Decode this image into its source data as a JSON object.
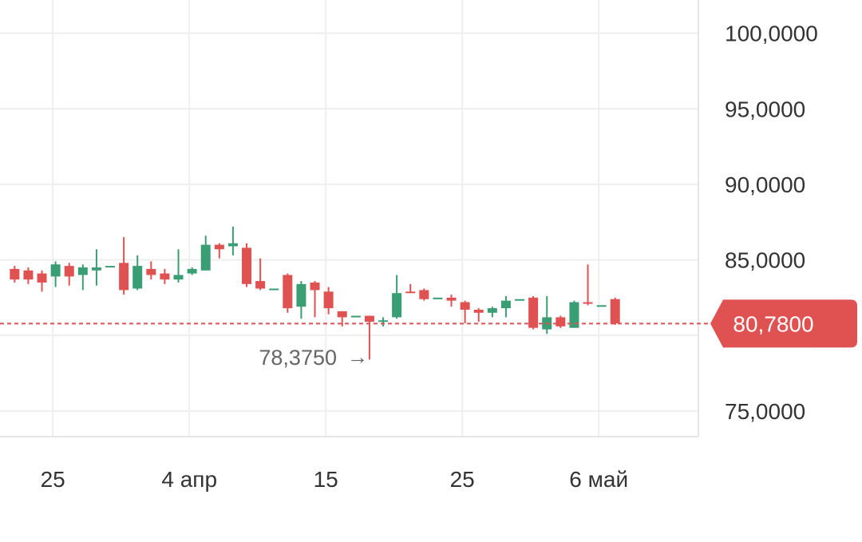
{
  "chart_data": {
    "type": "candlestick",
    "y_axis": {
      "position": "right",
      "range": [
        73.3,
        102.2
      ],
      "ticks": [
        "100,0000",
        "95,0000",
        "90,0000",
        "85,0000",
        "75,0000"
      ],
      "tick_values": [
        100,
        95,
        90,
        85,
        75
      ]
    },
    "x_axis": {
      "ticks": [
        {
          "label": "25",
          "day": -8
        },
        {
          "label": "4 апр",
          "day": 2
        },
        {
          "label": "15",
          "day": 12
        },
        {
          "label": "25",
          "day": 22
        },
        {
          "label": "6 май",
          "day": 32
        }
      ]
    },
    "current_price": {
      "value": 80.78,
      "label": "80,7800",
      "color": "#e05252"
    },
    "min_annotation": {
      "value": 78.375,
      "label": "78,3750",
      "arrow": "→",
      "day": 19.5
    },
    "colors": {
      "up": "#3a9e74",
      "down": "#e05252",
      "grid": "#eeeeee",
      "axis_text": "#333333",
      "annotation_text": "#666666"
    },
    "candles": [
      {
        "d": -10.8,
        "o": 84.4,
        "c": 83.7,
        "h": 84.6,
        "l": 83.5
      },
      {
        "d": -9.8,
        "o": 84.3,
        "c": 83.7,
        "h": 84.5,
        "l": 83.4
      },
      {
        "d": -8.8,
        "o": 84.1,
        "c": 83.5,
        "h": 84.3,
        "l": 82.9
      },
      {
        "d": -7.8,
        "o": 83.9,
        "c": 84.7,
        "h": 84.9,
        "l": 83.2
      },
      {
        "d": -6.8,
        "o": 84.6,
        "c": 83.9,
        "h": 84.8,
        "l": 83.3
      },
      {
        "d": -5.8,
        "o": 84.0,
        "c": 84.5,
        "h": 84.7,
        "l": 83.0
      },
      {
        "d": -4.8,
        "o": 84.3,
        "c": 84.5,
        "h": 85.7,
        "l": 83.3
      },
      {
        "d": -3.8,
        "o": 84.6,
        "c": 84.6,
        "h": 84.6,
        "l": 84.6
      },
      {
        "d": -2.8,
        "o": 84.8,
        "c": 83.0,
        "h": 86.5,
        "l": 82.7
      },
      {
        "d": -1.8,
        "o": 83.1,
        "c": 84.6,
        "h": 85.3,
        "l": 83.0
      },
      {
        "d": -0.8,
        "o": 84.4,
        "c": 84.0,
        "h": 84.9,
        "l": 83.7
      },
      {
        "d": 0.2,
        "o": 84.1,
        "c": 83.7,
        "h": 84.4,
        "l": 83.4
      },
      {
        "d": 1.2,
        "o": 83.7,
        "c": 84.0,
        "h": 85.7,
        "l": 83.5
      },
      {
        "d": 2.2,
        "o": 84.1,
        "c": 84.4,
        "h": 84.5,
        "l": 84.0
      },
      {
        "d": 3.2,
        "o": 84.3,
        "c": 86.0,
        "h": 86.6,
        "l": 84.3
      },
      {
        "d": 4.2,
        "o": 86.0,
        "c": 85.7,
        "h": 86.1,
        "l": 85.1
      },
      {
        "d": 5.2,
        "o": 85.9,
        "c": 86.1,
        "h": 87.2,
        "l": 85.3
      },
      {
        "d": 6.2,
        "o": 85.8,
        "c": 83.4,
        "h": 86.1,
        "l": 83.2
      },
      {
        "d": 7.2,
        "o": 83.6,
        "c": 83.1,
        "h": 85.1,
        "l": 83.0
      },
      {
        "d": 8.2,
        "o": 83.1,
        "c": 83.1,
        "h": 83.1,
        "l": 83.1
      },
      {
        "d": 9.2,
        "o": 84.0,
        "c": 81.8,
        "h": 84.1,
        "l": 81.5
      },
      {
        "d": 10.2,
        "o": 81.9,
        "c": 83.4,
        "h": 83.6,
        "l": 81.1
      },
      {
        "d": 11.2,
        "o": 83.5,
        "c": 83.0,
        "h": 83.6,
        "l": 81.2
      },
      {
        "d": 12.2,
        "o": 82.9,
        "c": 81.8,
        "h": 83.2,
        "l": 81.4
      },
      {
        "d": 13.2,
        "o": 81.6,
        "c": 81.2,
        "h": 81.6,
        "l": 80.6
      },
      {
        "d": 14.2,
        "o": 81.2,
        "c": 81.3,
        "h": 81.3,
        "l": 81.2
      },
      {
        "d": 15.2,
        "o": 81.3,
        "c": 80.9,
        "h": 81.3,
        "l": 78.4
      },
      {
        "d": 16.2,
        "o": 80.9,
        "c": 81.0,
        "h": 81.2,
        "l": 80.6
      },
      {
        "d": 17.2,
        "o": 81.2,
        "c": 82.8,
        "h": 84.0,
        "l": 81.1
      },
      {
        "d": 18.2,
        "o": 82.9,
        "c": 82.8,
        "h": 83.4,
        "l": 82.8
      },
      {
        "d": 19.2,
        "o": 83.0,
        "c": 82.4,
        "h": 83.1,
        "l": 82.3
      },
      {
        "d": 20.2,
        "o": 82.5,
        "c": 82.5,
        "h": 82.5,
        "l": 82.5
      },
      {
        "d": 21.2,
        "o": 82.5,
        "c": 82.3,
        "h": 82.7,
        "l": 81.9
      },
      {
        "d": 22.2,
        "o": 82.2,
        "c": 81.7,
        "h": 82.3,
        "l": 80.8
      },
      {
        "d": 23.2,
        "o": 81.7,
        "c": 81.5,
        "h": 81.8,
        "l": 80.9
      },
      {
        "d": 24.2,
        "o": 81.5,
        "c": 81.8,
        "h": 81.9,
        "l": 81.2
      },
      {
        "d": 25.2,
        "o": 81.8,
        "c": 82.3,
        "h": 82.6,
        "l": 81.2
      },
      {
        "d": 26.2,
        "o": 82.4,
        "c": 82.4,
        "h": 82.4,
        "l": 82.4
      },
      {
        "d": 27.2,
        "o": 82.5,
        "c": 80.5,
        "h": 82.6,
        "l": 80.4
      },
      {
        "d": 28.2,
        "o": 80.4,
        "c": 81.2,
        "h": 82.6,
        "l": 80.1
      },
      {
        "d": 29.2,
        "o": 81.2,
        "c": 80.6,
        "h": 81.3,
        "l": 80.5
      },
      {
        "d": 30.2,
        "o": 80.5,
        "c": 82.2,
        "h": 82.3,
        "l": 80.5
      },
      {
        "d": 31.2,
        "o": 82.2,
        "c": 82.1,
        "h": 84.7,
        "l": 82.0
      },
      {
        "d": 32.2,
        "o": 82.0,
        "c": 82.0,
        "h": 82.0,
        "l": 82.0
      },
      {
        "d": 33.2,
        "o": 82.4,
        "c": 80.8,
        "h": 82.5,
        "l": 80.7
      }
    ]
  }
}
